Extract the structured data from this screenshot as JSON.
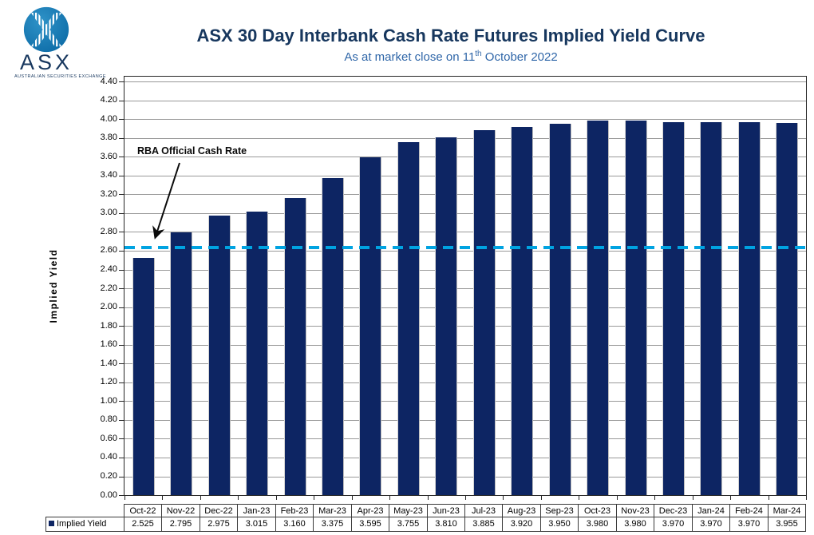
{
  "logo": {
    "text": "ASX",
    "caption": "AUSTRALIAN SECURITIES EXCHANGE",
    "circle_color": "#1578B0"
  },
  "header": {
    "title": "ASX 30 Day Interbank Cash Rate Futures Implied Yield Curve",
    "subtitle_prefix": "As at market close on 11",
    "subtitle_sup": "th",
    "subtitle_suffix": " October 2022",
    "title_color": "#17375E",
    "subtitle_color": "#2F66A8"
  },
  "chart_data": {
    "type": "bar",
    "title": "ASX 30 Day Interbank Cash Rate Futures Implied Yield Curve",
    "subtitle": "As at market close on 11th October 2022",
    "xlabel": "",
    "ylabel": "Implied Yield",
    "ylim": [
      0.0,
      4.4
    ],
    "ytick_step": 0.2,
    "grid": true,
    "legend_position": "table-left",
    "categories": [
      "Oct-22",
      "Nov-22",
      "Dec-22",
      "Jan-23",
      "Feb-23",
      "Mar-23",
      "Apr-23",
      "May-23",
      "Jun-23",
      "Jul-23",
      "Aug-23",
      "Sep-23",
      "Oct-23",
      "Nov-23",
      "Dec-23",
      "Jan-24",
      "Feb-24",
      "Mar-24"
    ],
    "series": [
      {
        "name": "Implied Yield",
        "values": [
          2.525,
          2.795,
          2.975,
          3.015,
          3.16,
          3.375,
          3.595,
          3.755,
          3.81,
          3.885,
          3.92,
          3.95,
          3.98,
          3.98,
          3.97,
          3.97,
          3.97,
          3.955
        ]
      }
    ],
    "reference_line": {
      "label": "RBA Official Cash Rate",
      "value": 2.63,
      "style": "dashed",
      "color": "#00A3E1"
    },
    "colors": {
      "bar": "#0D2563",
      "reference": "#00A3E1",
      "grid": "#999999",
      "axis": "#262626",
      "table_border": "#3A3A3A"
    }
  }
}
